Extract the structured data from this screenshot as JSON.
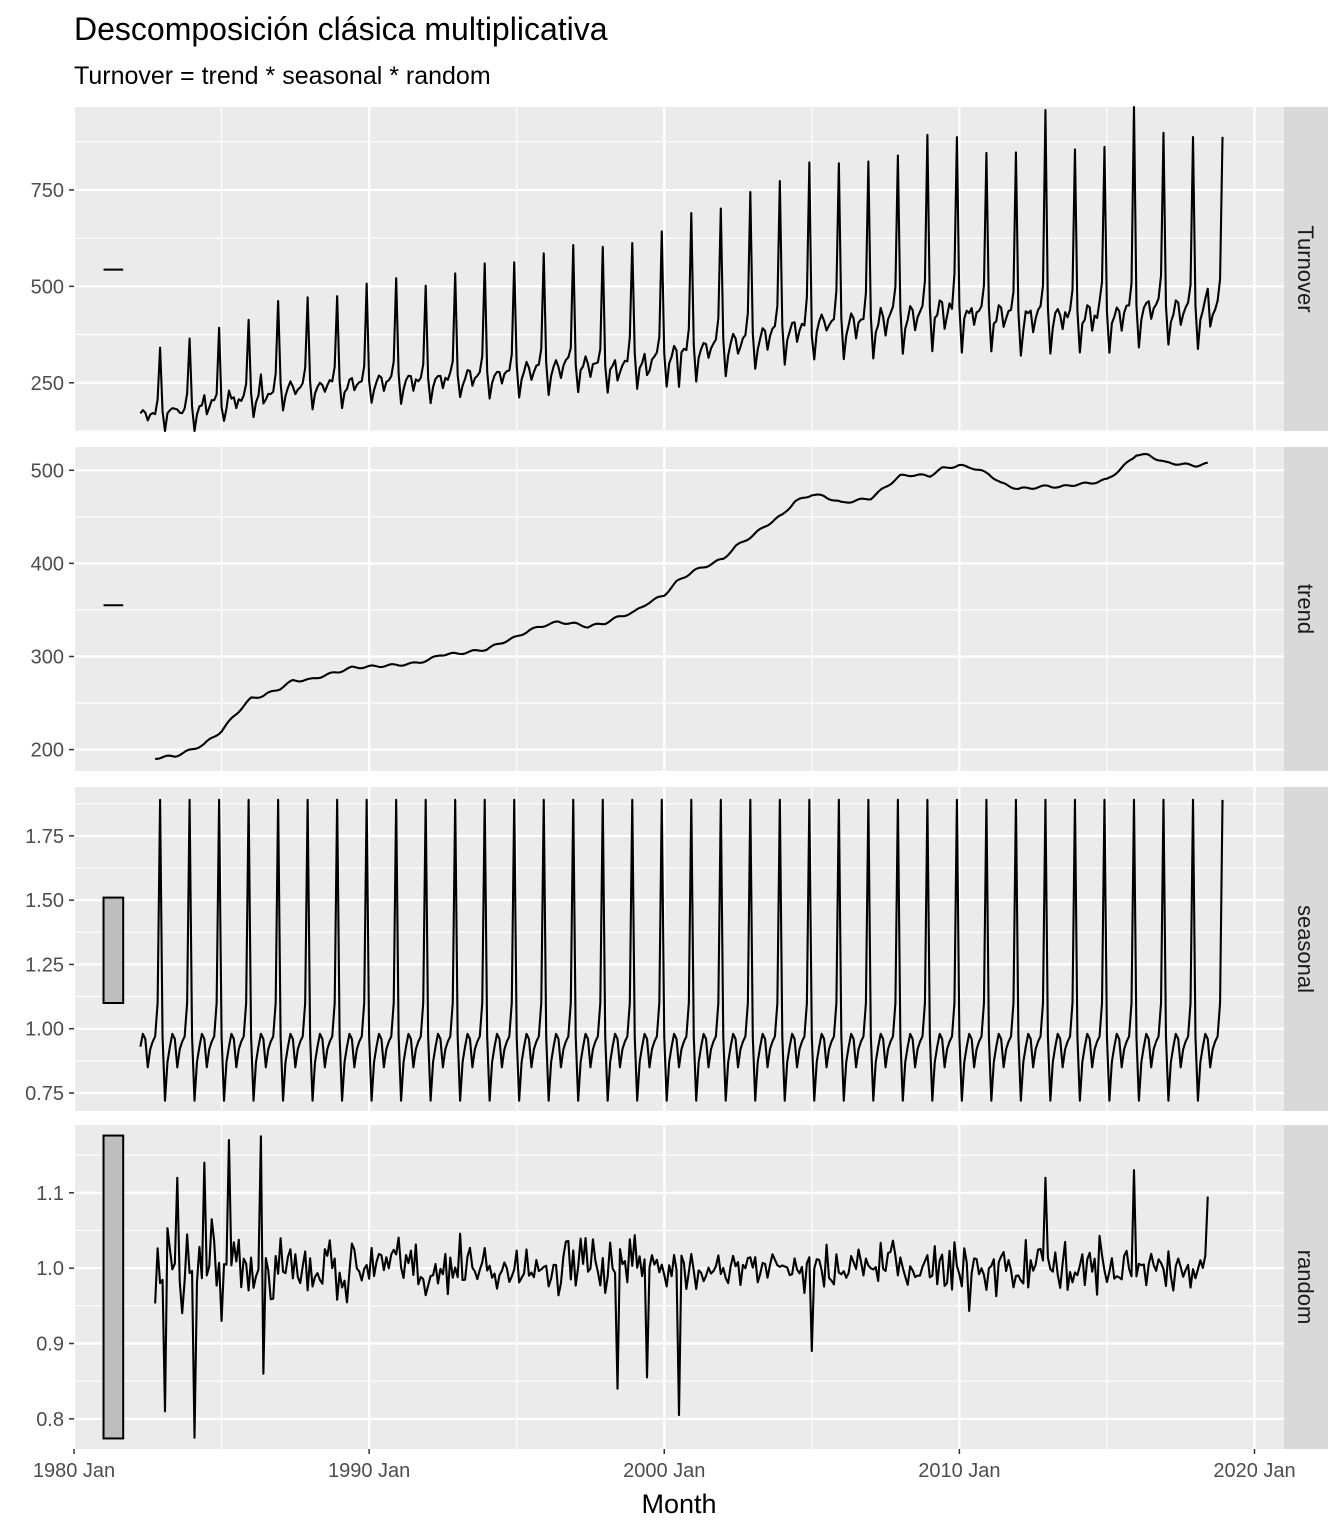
{
  "chart_data": {
    "type": "line",
    "title": "Descomposición clásica multiplicativa",
    "subtitle": "Turnover = trend * seasonal * random",
    "xlabel": "Month",
    "x_range": [
      "1980 Jan",
      "2021 Jan"
    ],
    "x_ticks": [
      "1980 Jan",
      "1990 Jan",
      "2000 Jan",
      "2010 Jan",
      "2020 Jan"
    ],
    "x_start": "1982 Apr",
    "x_end": "2018 Dec",
    "frequency": "monthly",
    "grid": true,
    "panels": [
      {
        "name": "Turnover",
        "ylim": [
          125,
          965
        ],
        "y_ticks": [
          250,
          500,
          750
        ],
        "scale_bar": [
          540,
          547
        ],
        "annual_mean": [
          {
            "year": 1982,
            "value": 180
          },
          {
            "year": 1983,
            "value": 190
          },
          {
            "year": 1984,
            "value": 200
          },
          {
            "year": 1985,
            "value": 215
          },
          {
            "year": 1986,
            "value": 240
          },
          {
            "year": 1987,
            "value": 255
          },
          {
            "year": 1988,
            "value": 260
          },
          {
            "year": 1989,
            "value": 265
          },
          {
            "year": 1990,
            "value": 270
          },
          {
            "year": 1991,
            "value": 272
          },
          {
            "year": 1992,
            "value": 280
          },
          {
            "year": 1993,
            "value": 285
          },
          {
            "year": 1994,
            "value": 293
          },
          {
            "year": 1995,
            "value": 305
          },
          {
            "year": 1996,
            "value": 315
          },
          {
            "year": 1997,
            "value": 312
          },
          {
            "year": 1998,
            "value": 318
          },
          {
            "year": 1999,
            "value": 330
          },
          {
            "year": 2000,
            "value": 350
          },
          {
            "year": 2001,
            "value": 370
          },
          {
            "year": 2002,
            "value": 380
          },
          {
            "year": 2003,
            "value": 400
          },
          {
            "year": 2004,
            "value": 420
          },
          {
            "year": 2005,
            "value": 440
          },
          {
            "year": 2006,
            "value": 430
          },
          {
            "year": 2007,
            "value": 440
          },
          {
            "year": 2008,
            "value": 460
          },
          {
            "year": 2009,
            "value": 470
          },
          {
            "year": 2010,
            "value": 465
          },
          {
            "year": 2011,
            "value": 455
          },
          {
            "year": 2012,
            "value": 450
          },
          {
            "year": 2013,
            "value": 455
          },
          {
            "year": 2014,
            "value": 455
          },
          {
            "year": 2015,
            "value": 460
          },
          {
            "year": 2016,
            "value": 480
          },
          {
            "year": 2017,
            "value": 470
          },
          {
            "year": 2018,
            "value": 470
          }
        ]
      },
      {
        "name": "trend",
        "ylim": [
          177,
          525
        ],
        "y_ticks": [
          200,
          300,
          400,
          500
        ],
        "scale_bar": [
          354,
          356
        ],
        "start": "1982 Oct",
        "end": "2018 Jun",
        "points": [
          {
            "x": "1982 Oct",
            "y": 191
          },
          {
            "x": "1983 Jun",
            "y": 193
          },
          {
            "x": "1984 Jan",
            "y": 200
          },
          {
            "x": "1984 Jun",
            "y": 206
          },
          {
            "x": "1985 Jan",
            "y": 220
          },
          {
            "x": "1985 Jun",
            "y": 236
          },
          {
            "x": "1986 Jan",
            "y": 255
          },
          {
            "x": "1986 Jun",
            "y": 258
          },
          {
            "x": "1987 Jan",
            "y": 266
          },
          {
            "x": "1987 Jun",
            "y": 274
          },
          {
            "x": "1988 Jan",
            "y": 275
          },
          {
            "x": "1988 Jun",
            "y": 279
          },
          {
            "x": "1989 Jan",
            "y": 284
          },
          {
            "x": "1989 Jun",
            "y": 288
          },
          {
            "x": "1990 Jan",
            "y": 289
          },
          {
            "x": "1991 Jan",
            "y": 291
          },
          {
            "x": "1991 Jun",
            "y": 292
          },
          {
            "x": "1992 Jan",
            "y": 296
          },
          {
            "x": "1992 Jun",
            "y": 302
          },
          {
            "x": "1993 Jan",
            "y": 303
          },
          {
            "x": "1993 Jun",
            "y": 305
          },
          {
            "x": "1994 Jan",
            "y": 308
          },
          {
            "x": "1994 Jun",
            "y": 314
          },
          {
            "x": "1995 Jan",
            "y": 321
          },
          {
            "x": "1995 Jun",
            "y": 328
          },
          {
            "x": "1996 Jan",
            "y": 334
          },
          {
            "x": "1996 Jun",
            "y": 337
          },
          {
            "x": "1997 Jan",
            "y": 335
          },
          {
            "x": "1997 Jun",
            "y": 332
          },
          {
            "x": "1998 Jan",
            "y": 336
          },
          {
            "x": "1998 Jun",
            "y": 342
          },
          {
            "x": "1999 Jan",
            "y": 348
          },
          {
            "x": "1999 Jun",
            "y": 357
          },
          {
            "x": "2000 Jan",
            "y": 366
          },
          {
            "x": "2000 Jun",
            "y": 380
          },
          {
            "x": "2001 Jan",
            "y": 392
          },
          {
            "x": "2001 Jun",
            "y": 397
          },
          {
            "x": "2002 Jan",
            "y": 405
          },
          {
            "x": "2002 Jun",
            "y": 418
          },
          {
            "x": "2003 Jan",
            "y": 430
          },
          {
            "x": "2003 Jun",
            "y": 440
          },
          {
            "x": "2004 Jan",
            "y": 452
          },
          {
            "x": "2004 Jun",
            "y": 466
          },
          {
            "x": "2005 Jan",
            "y": 474
          },
          {
            "x": "2005 Jun",
            "y": 472
          },
          {
            "x": "2006 Jan",
            "y": 465
          },
          {
            "x": "2006 Jun",
            "y": 467
          },
          {
            "x": "2007 Jan",
            "y": 470
          },
          {
            "x": "2007 Jun",
            "y": 480
          },
          {
            "x": "2008 Jan",
            "y": 494
          },
          {
            "x": "2008 Jun",
            "y": 495
          },
          {
            "x": "2009 Jan",
            "y": 494
          },
          {
            "x": "2009 Jun",
            "y": 502
          },
          {
            "x": "2010 Jan",
            "y": 505
          },
          {
            "x": "2010 Jun",
            "y": 503
          },
          {
            "x": "2011 Jan",
            "y": 496
          },
          {
            "x": "2011 Jun",
            "y": 486
          },
          {
            "x": "2012 Jan",
            "y": 480
          },
          {
            "x": "2012 Jun",
            "y": 481
          },
          {
            "x": "2013 Jan",
            "y": 483
          },
          {
            "x": "2013 Jun",
            "y": 482
          },
          {
            "x": "2014 Jan",
            "y": 485
          },
          {
            "x": "2014 Jun",
            "y": 486
          },
          {
            "x": "2015 Jan",
            "y": 490
          },
          {
            "x": "2015 Jun",
            "y": 500
          },
          {
            "x": "2016 Jan",
            "y": 517
          },
          {
            "x": "2016 Jun",
            "y": 516
          },
          {
            "x": "2017 Jan",
            "y": 508
          },
          {
            "x": "2017 Jun",
            "y": 507
          },
          {
            "x": "2018 Jan",
            "y": 505
          },
          {
            "x": "2018 Jun",
            "y": 507
          }
        ]
      },
      {
        "name": "seasonal",
        "ylim": [
          0.68,
          1.94
        ],
        "y_ticks": [
          0.75,
          1.0,
          1.25,
          1.5,
          1.75
        ],
        "y_tick_labels": [
          "0.75",
          "1.00",
          "1.25",
          "1.50",
          "1.75"
        ],
        "scale_bar": [
          1.1,
          1.51
        ],
        "seasonal_factors": [
          {
            "month": "Jan",
            "value": 0.97
          },
          {
            "month": "Feb",
            "value": 0.72
          },
          {
            "month": "Mar",
            "value": 0.87
          },
          {
            "month": "Apr",
            "value": 0.93
          },
          {
            "month": "May",
            "value": 0.98
          },
          {
            "month": "Jun",
            "value": 0.96
          },
          {
            "month": "Jul",
            "value": 0.85
          },
          {
            "month": "Aug",
            "value": 0.92
          },
          {
            "month": "Sep",
            "value": 0.95
          },
          {
            "month": "Oct",
            "value": 0.97
          },
          {
            "month": "Nov",
            "value": 1.1
          },
          {
            "month": "Dec",
            "value": 1.89
          }
        ]
      },
      {
        "name": "random",
        "ylim": [
          0.76,
          1.19
        ],
        "y_ticks": [
          0.8,
          0.9,
          1.0,
          1.1
        ],
        "y_tick_labels": [
          "0.8",
          "0.9",
          "1.0",
          "1.1"
        ],
        "scale_bar": [
          0.774,
          1.176
        ],
        "start": "1982 Oct",
        "end": "2018 Jun",
        "notable": [
          {
            "x": "1983 Feb",
            "y": 0.81
          },
          {
            "x": "1983 Jul",
            "y": 1.12
          },
          {
            "x": "1984 Feb",
            "y": 0.775
          },
          {
            "x": "1984 Jun",
            "y": 1.14
          },
          {
            "x": "1985 Apr",
            "y": 1.17
          },
          {
            "x": "1986 May",
            "y": 1.175
          },
          {
            "x": "1986 Jun",
            "y": 0.86
          },
          {
            "x": "1998 Jun",
            "y": 0.84
          },
          {
            "x": "1999 Jun",
            "y": 0.855
          },
          {
            "x": "2000 Jul",
            "y": 0.805
          },
          {
            "x": "2005 Jan",
            "y": 0.89
          },
          {
            "x": "2012 Dec",
            "y": 1.12
          },
          {
            "x": "2015 Dec",
            "y": 1.13
          },
          {
            "x": "2018 Jun",
            "y": 1.095
          }
        ]
      }
    ]
  }
}
